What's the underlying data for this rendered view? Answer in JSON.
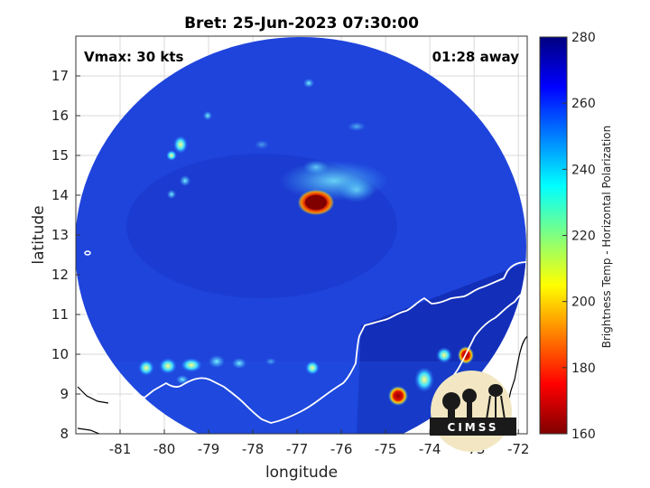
{
  "title": "Bret: 25-Jun-2023 07:30:00",
  "vmax_label": "Vmax: 30 kts",
  "time_label": "01:28 away",
  "map_data": {
    "xlabel": "longitude",
    "ylabel": "latitude",
    "xlim": [
      -82,
      -71.8
    ],
    "ylim": [
      8,
      18
    ],
    "xticks": [
      -81,
      -80,
      -79,
      -78,
      -77,
      -76,
      -75,
      -74,
      -73,
      -72
    ],
    "yticks": [
      8,
      9,
      10,
      11,
      12,
      13,
      14,
      15,
      16,
      17
    ],
    "xtick_labels": [
      "-81",
      "-80",
      "-79",
      "-78",
      "-77",
      "-76",
      "-75",
      "-74",
      "-73",
      "-72"
    ],
    "ytick_labels": [
      "8",
      "9",
      "10",
      "11",
      "12",
      "13",
      "14",
      "15",
      "16",
      "17"
    ],
    "grid": true,
    "swath_center": [
      -76.8,
      12.9
    ],
    "swath_radii": [
      4.7,
      4.85
    ],
    "features": [
      {
        "name": "storm-core",
        "lon": -76.6,
        "lat": 13.8,
        "tb": 165
      },
      {
        "name": "convection-east-colombia",
        "lon": -73.0,
        "lat": 10.0,
        "tb": 170
      },
      {
        "name": "convection-south",
        "lon": -74.7,
        "lat": 8.9,
        "tb": 175
      },
      {
        "name": "convection-panama",
        "lon": -80.4,
        "lat": 9.6,
        "tb": 215
      }
    ]
  },
  "colorbar": {
    "label": "Brightness Temp - Horizontal Polarization",
    "min": 160,
    "max": 280,
    "ticks": [
      160,
      180,
      200,
      220,
      240,
      260,
      280
    ],
    "tick_labels": [
      "160",
      "180",
      "200",
      "220",
      "240",
      "260",
      "280"
    ],
    "colormap": "jet"
  },
  "logo": {
    "text": "CIMSS"
  },
  "colors": {
    "swath_base": "#1b3fd6",
    "coastline": "#ffffff",
    "land_outline": "#000000"
  }
}
